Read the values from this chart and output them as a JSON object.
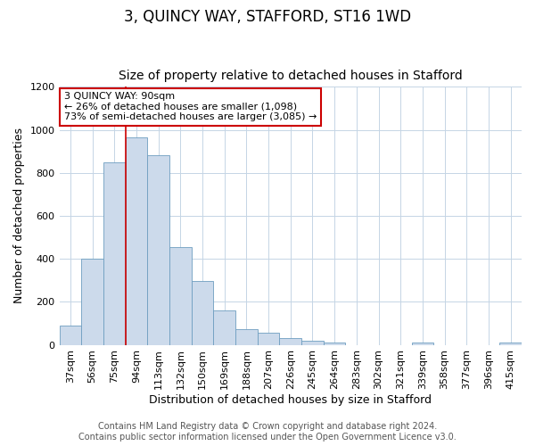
{
  "title": "3, QUINCY WAY, STAFFORD, ST16 1WD",
  "subtitle": "Size of property relative to detached houses in Stafford",
  "xlabel": "Distribution of detached houses by size in Stafford",
  "ylabel": "Number of detached properties",
  "categories": [
    "37sqm",
    "56sqm",
    "75sqm",
    "94sqm",
    "113sqm",
    "132sqm",
    "150sqm",
    "169sqm",
    "188sqm",
    "207sqm",
    "226sqm",
    "245sqm",
    "264sqm",
    "283sqm",
    "302sqm",
    "321sqm",
    "339sqm",
    "358sqm",
    "377sqm",
    "396sqm",
    "415sqm"
  ],
  "bar_values": [
    90,
    400,
    848,
    965,
    880,
    455,
    298,
    160,
    72,
    55,
    32,
    20,
    10,
    0,
    0,
    0,
    10,
    0,
    0,
    0,
    10
  ],
  "bar_color": "#ccdaeb",
  "bar_edge_color": "#6e9ec0",
  "ylim": [
    0,
    1200
  ],
  "yticks": [
    0,
    200,
    400,
    600,
    800,
    1000,
    1200
  ],
  "vline_x_index": 3,
  "vline_color": "#cc0000",
  "annotation_title": "3 QUINCY WAY: 90sqm",
  "annotation_line1": "← 26% of detached houses are smaller (1,098)",
  "annotation_line2": "73% of semi-detached houses are larger (3,085) →",
  "annotation_box_color": "#ffffff",
  "annotation_box_edge": "#cc0000",
  "footer1": "Contains HM Land Registry data © Crown copyright and database right 2024.",
  "footer2": "Contains public sector information licensed under the Open Government Licence v3.0.",
  "bg_color": "#ffffff",
  "grid_color": "#c5d5e5",
  "title_fontsize": 12,
  "subtitle_fontsize": 10,
  "label_fontsize": 9,
  "tick_fontsize": 8,
  "annotation_fontsize": 8,
  "footer_fontsize": 7
}
